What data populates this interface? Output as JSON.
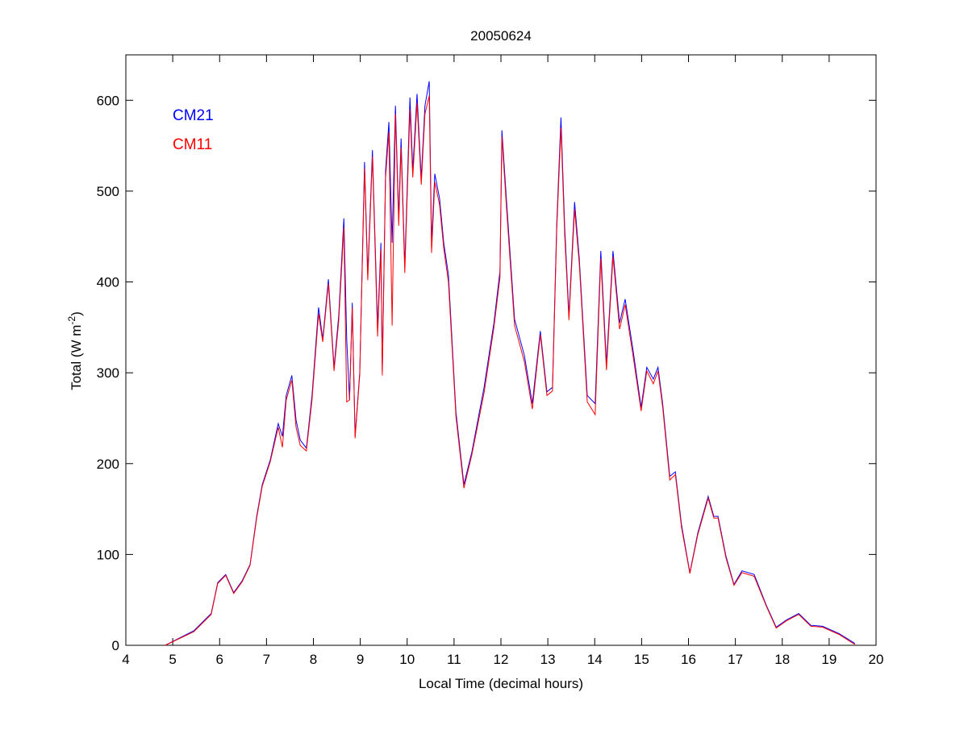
{
  "chart_data": {
    "type": "line",
    "title": "20050624",
    "xlabel": "Local Time (decimal hours)",
    "ylabel_main": "Total (W m",
    "ylabel_sup": "-2",
    "ylabel_close": ")",
    "xlim": [
      4,
      20
    ],
    "ylim": [
      0,
      650
    ],
    "xticks": [
      4,
      5,
      6,
      7,
      8,
      9,
      10,
      11,
      12,
      13,
      14,
      15,
      16,
      17,
      18,
      19,
      20
    ],
    "xtick_labels": [
      "4",
      "5",
      "6",
      "7",
      "8",
      "9",
      "10",
      "11",
      "12",
      "13",
      "14",
      "15",
      "16",
      "17",
      "18",
      "19",
      "20"
    ],
    "yticks": [
      0,
      100,
      200,
      300,
      400,
      500,
      600
    ],
    "ytick_labels": [
      "0",
      "100",
      "200",
      "300",
      "400",
      "500",
      "600"
    ],
    "grid": false,
    "legend_placement": "top-left",
    "x": [
      4.84,
      5.45,
      5.82,
      5.96,
      6.13,
      6.3,
      6.48,
      6.65,
      6.79,
      6.91,
      7.08,
      7.25,
      7.34,
      7.42,
      7.54,
      7.63,
      7.72,
      7.85,
      7.97,
      8.11,
      8.2,
      8.32,
      8.44,
      8.54,
      8.65,
      8.71,
      8.77,
      8.83,
      8.89,
      8.99,
      9.09,
      9.16,
      9.26,
      9.37,
      9.44,
      9.47,
      9.54,
      9.61,
      9.68,
      9.75,
      9.82,
      9.87,
      9.95,
      10.06,
      10.12,
      10.21,
      10.3,
      10.38,
      10.47,
      10.52,
      10.59,
      10.69,
      10.78,
      10.88,
      11.04,
      11.21,
      11.38,
      11.64,
      11.85,
      11.98,
      12.02,
      12.12,
      12.29,
      12.5,
      12.67,
      12.84,
      12.98,
      13.1,
      13.19,
      13.28,
      13.36,
      13.45,
      13.57,
      13.67,
      13.84,
      14.01,
      14.13,
      14.25,
      14.39,
      14.53,
      14.65,
      14.82,
      14.99,
      15.11,
      15.25,
      15.35,
      15.45,
      15.6,
      15.72,
      15.85,
      16.03,
      16.2,
      16.42,
      16.54,
      16.63,
      16.8,
      16.97,
      17.14,
      17.4,
      17.66,
      17.87,
      18.09,
      18.35,
      18.61,
      18.86,
      19.21,
      19.55
    ],
    "series": [
      {
        "name": "CM21",
        "color": "#0000ff",
        "values": [
          0,
          16,
          35,
          69,
          78,
          58,
          71,
          89,
          142,
          177,
          204,
          244,
          230,
          275,
          297,
          248,
          226,
          217,
          275,
          372,
          337,
          403,
          306,
          363,
          470,
          337,
          270,
          377,
          230,
          301,
          532,
          408,
          545,
          350,
          443,
          301,
          523,
          576,
          443,
          594,
          470,
          558,
          417,
          603,
          523,
          607,
          514,
          594,
          621,
          443,
          519,
          492,
          443,
          408,
          257,
          177,
          213,
          284,
          355,
          412,
          567,
          488,
          359,
          319,
          266,
          346,
          279,
          284,
          465,
          581,
          461,
          363,
          488,
          426,
          275,
          266,
          434,
          310,
          434,
          355,
          381,
          324,
          262,
          306,
          293,
          306,
          266,
          186,
          191,
          133,
          80,
          124,
          164,
          142,
          142,
          98,
          67,
          82,
          78,
          44,
          20,
          28,
          35,
          22,
          21,
          13,
          2
        ]
      },
      {
        "name": "CM11",
        "color": "#ff0000",
        "values": [
          0,
          15,
          34,
          68,
          77,
          57,
          70,
          88,
          140,
          175,
          202,
          240,
          218,
          270,
          292,
          240,
          220,
          214,
          270,
          365,
          334,
          398,
          302,
          357,
          460,
          268,
          270,
          372,
          228,
          298,
          525,
          402,
          538,
          340,
          436,
          297,
          515,
          565,
          352,
          585,
          462,
          548,
          410,
          590,
          515,
          597,
          507,
          585,
          605,
          432,
          510,
          485,
          437,
          400,
          252,
          173,
          210,
          278,
          350,
          405,
          560,
          480,
          352,
          312,
          260,
          342,
          275,
          280,
          458,
          570,
          452,
          358,
          480,
          420,
          268,
          254,
          426,
          303,
          428,
          348,
          375,
          318,
          258,
          302,
          288,
          302,
          262,
          182,
          188,
          130,
          79,
          122,
          162,
          140,
          140,
          96,
          66,
          80,
          76,
          43,
          19,
          27,
          34,
          21,
          20,
          12,
          1
        ]
      }
    ]
  }
}
